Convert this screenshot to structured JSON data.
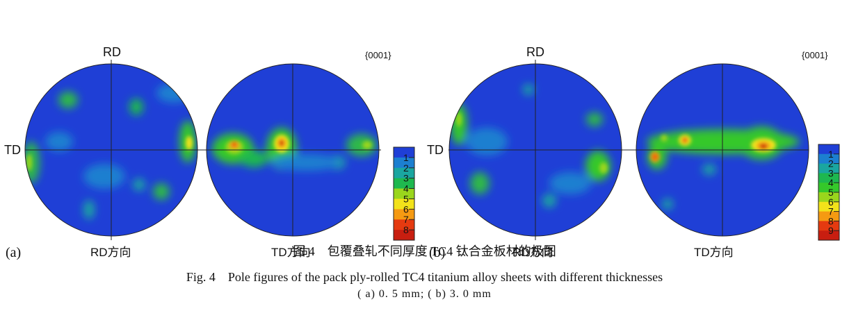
{
  "panels": [
    {
      "id": "a",
      "panel_label": "(a)",
      "rd_label": "RD",
      "td_label": "TD",
      "plane_label": "{0001}",
      "left_caption": "RD方向",
      "right_caption": "TD方向",
      "legend_ticks": [
        "1",
        "2",
        "3",
        "4",
        "5",
        "6",
        "7",
        "8"
      ]
    },
    {
      "id": "b",
      "panel_label": "(b)",
      "rd_label": "RD",
      "td_label": "TD",
      "plane_label": "{0001}",
      "left_caption": "RD方向",
      "right_caption": "TD方向",
      "legend_ticks": [
        "1",
        "2",
        "3",
        "4",
        "5",
        "6",
        "7",
        "8",
        "9"
      ]
    }
  ],
  "colors": {
    "background_blue": "#1f3fd6",
    "legend_scale": [
      "#1f3fd6",
      "#1c7fd0",
      "#1aa6a0",
      "#1eb84f",
      "#35c82a",
      "#9ad61c",
      "#f2e21a",
      "#f59a12",
      "#e53a10",
      "#c81e10"
    ]
  },
  "caption": {
    "cn": "图 4　包覆叠轧不同厚度 TC4 钛合金板材的极图",
    "en": "Fig. 4　Pole figures of the pack ply-rolled TC4 titanium alloy sheets with different thicknesses",
    "sub": "( a) 0. 5 mm; ( b) 3. 0 mm"
  }
}
